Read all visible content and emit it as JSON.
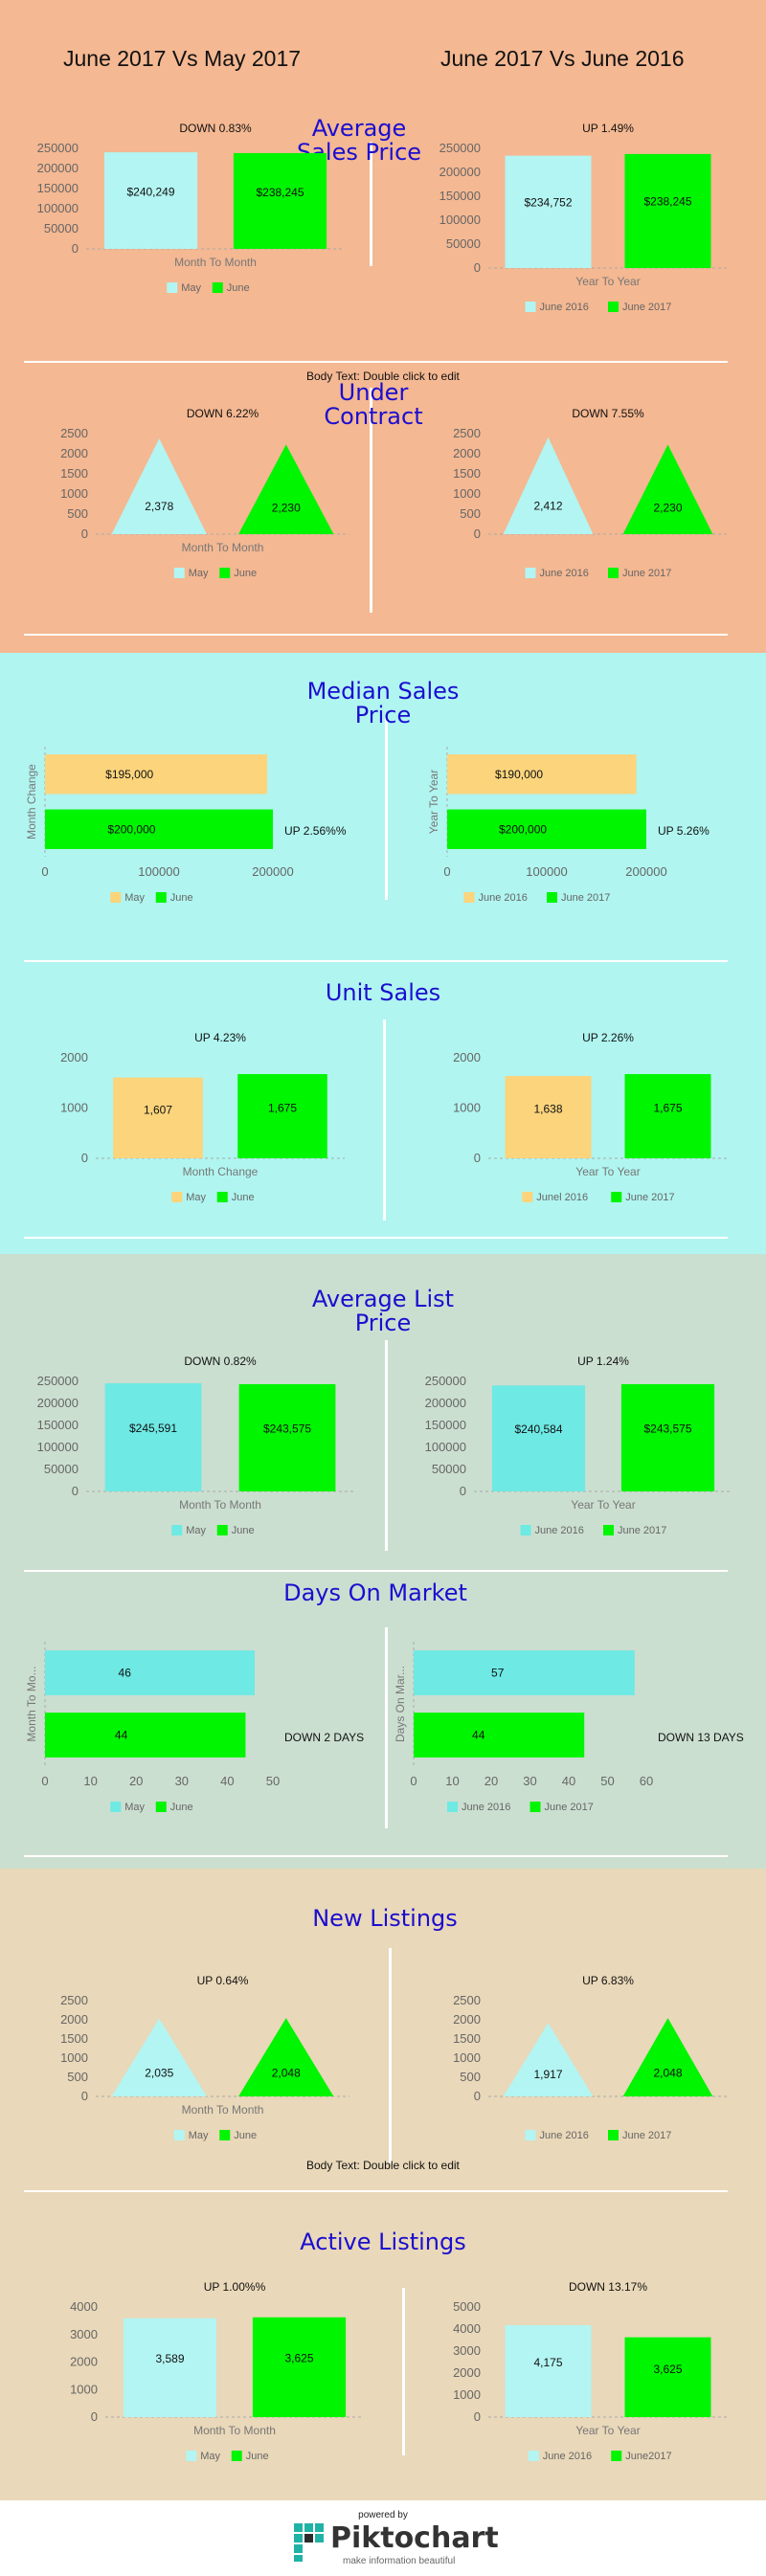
{
  "colors": {
    "peach_bg": "#f4b892",
    "cyan_bg": "#b0f5f0",
    "sage_bg": "#cbdfd0",
    "tan_bg": "#e9d8b9",
    "light_cyan": "#b3f5f2",
    "bright_green": "#00f500",
    "light_orange": "#fbd47c",
    "teal_bar": "#6ee9e4",
    "title_blue": "#1b0ecf"
  },
  "header": {
    "left_title": "June 2017 Vs May 2017",
    "right_title": "June 2017 Vs June 2016"
  },
  "body_text_1": "Body Text: Double click to edit",
  "body_text_2": "Body Text: Double click to edit",
  "sections": {
    "avg_sales_price": {
      "title_line1": "Average",
      "title_line2": "Sales Price"
    },
    "under_contract": {
      "title_line1": "Under",
      "title_line2": "Contract"
    },
    "median_sales_price": {
      "title_line1": "Median Sales",
      "title_line2": "Price"
    },
    "unit_sales": {
      "title_line1": "Unit Sales"
    },
    "avg_list_price": {
      "title_line1": "Average List",
      "title_line2": "Price"
    },
    "days_on_market": {
      "title_line1": "Days On Market"
    },
    "new_listings": {
      "title_line1": "New Listings"
    },
    "active_listings": {
      "title_line1": "Active Listings"
    }
  },
  "footer": {
    "powered_by": "powered by",
    "brand": "Piktochart",
    "tagline": "make information beautiful"
  },
  "chart_data": [
    {
      "id": "asp_m",
      "type": "bar",
      "ylim": [
        0,
        250000
      ],
      "yticks": [
        0,
        50000,
        100000,
        150000,
        200000,
        250000
      ],
      "categories": [
        "May",
        "June"
      ],
      "values": [
        240249,
        238245
      ],
      "value_labels": [
        "$240,249",
        "$238,245"
      ],
      "colors": [
        "#b3f5f2",
        "#00f500"
      ],
      "xlabel": "Month To Month",
      "annotation": "DOWN 0.83%",
      "legend": [
        "May",
        "June"
      ],
      "legend_placement": "bottom"
    },
    {
      "id": "asp_y",
      "type": "bar",
      "ylim": [
        0,
        250000
      ],
      "yticks": [
        0,
        50000,
        100000,
        150000,
        200000,
        250000
      ],
      "categories": [
        "June 2016",
        "June 2017"
      ],
      "values": [
        234752,
        238245
      ],
      "value_labels": [
        "$234,752",
        "$238,245"
      ],
      "colors": [
        "#b3f5f2",
        "#00f500"
      ],
      "xlabel": "Year To Year",
      "annotation": "UP 1.49%",
      "legend": [
        "June 2016",
        "June 2017"
      ],
      "legend_placement": "bottom"
    },
    {
      "id": "uc_m",
      "type": "triangle",
      "ylim": [
        0,
        2500
      ],
      "yticks": [
        0,
        500,
        1000,
        1500,
        2000,
        2500
      ],
      "categories": [
        "May",
        "June"
      ],
      "values": [
        2378,
        2230
      ],
      "value_labels": [
        "2,378",
        "2,230"
      ],
      "colors": [
        "#b3f5f2",
        "#00f500"
      ],
      "xlabel": "Month To Month",
      "annotation": "DOWN 6.22%",
      "legend": [
        "May",
        "June"
      ],
      "legend_placement": "bottom"
    },
    {
      "id": "uc_y",
      "type": "triangle",
      "ylim": [
        0,
        2500
      ],
      "yticks": [
        0,
        500,
        1000,
        1500,
        2000,
        2500
      ],
      "categories": [
        "June 2016",
        "June 2017"
      ],
      "values": [
        2412,
        2230
      ],
      "value_labels": [
        "2,412",
        "2,230"
      ],
      "colors": [
        "#b3f5f2",
        "#00f500"
      ],
      "xlabel": "",
      "annotation": "DOWN 7.55%",
      "legend": [
        "June 2016",
        "June 2017"
      ],
      "legend_placement": "bottom"
    },
    {
      "id": "msp_m",
      "type": "hbar",
      "xlim": [
        0,
        200000
      ],
      "xticks": [
        0,
        100000,
        200000
      ],
      "categories": [
        "May",
        "June"
      ],
      "values": [
        195000,
        200000
      ],
      "value_labels": [
        "$195,000",
        "$200,000"
      ],
      "colors": [
        "#fbd47c",
        "#00f500"
      ],
      "ylabel": "Month Change",
      "annotation": "UP 2.56%%",
      "legend": [
        "May",
        "June"
      ],
      "legend_placement": "bottom"
    },
    {
      "id": "msp_y",
      "type": "hbar",
      "xlim": [
        0,
        200000
      ],
      "xticks": [
        0,
        100000,
        200000
      ],
      "categories": [
        "June 2016",
        "June 2017"
      ],
      "values": [
        190000,
        200000
      ],
      "value_labels": [
        "$190,000",
        "$200,000"
      ],
      "colors": [
        "#fbd47c",
        "#00f500"
      ],
      "ylabel": "Year To Year",
      "annotation": "UP 5.26%",
      "legend": [
        "June 2016",
        "June 2017"
      ],
      "legend_placement": "bottom"
    },
    {
      "id": "us_m",
      "type": "bar",
      "ylim": [
        0,
        2000
      ],
      "yticks": [
        0,
        1000,
        2000
      ],
      "categories": [
        "May",
        "June"
      ],
      "values": [
        1607,
        1675
      ],
      "value_labels": [
        "1,607",
        "1,675"
      ],
      "colors": [
        "#fbd47c",
        "#00f500"
      ],
      "xlabel": "Month Change",
      "annotation": "UP 4.23%",
      "legend": [
        "May",
        "June"
      ],
      "legend_placement": "bottom"
    },
    {
      "id": "us_y",
      "type": "bar",
      "ylim": [
        0,
        2000
      ],
      "yticks": [
        0,
        1000,
        2000
      ],
      "categories": [
        "Junel 2016",
        "June 2017"
      ],
      "values": [
        1638,
        1675
      ],
      "value_labels": [
        "1,638",
        "1,675"
      ],
      "colors": [
        "#fbd47c",
        "#00f500"
      ],
      "xlabel": "Year To Year",
      "annotation": "UP 2.26%",
      "legend": [
        "Junel 2016",
        "June 2017"
      ],
      "legend_placement": "bottom"
    },
    {
      "id": "alp_m",
      "type": "bar",
      "ylim": [
        0,
        250000
      ],
      "yticks": [
        0,
        50000,
        100000,
        150000,
        200000,
        250000
      ],
      "categories": [
        "May",
        "June"
      ],
      "values": [
        245591,
        243575
      ],
      "value_labels": [
        "$245,591",
        "$243,575"
      ],
      "colors": [
        "#6ee9e4",
        "#00f500"
      ],
      "xlabel": "Month To Month",
      "annotation": "DOWN 0.82%",
      "legend": [
        "May",
        "June"
      ],
      "legend_placement": "bottom"
    },
    {
      "id": "alp_y",
      "type": "bar",
      "ylim": [
        0,
        250000
      ],
      "yticks": [
        0,
        50000,
        100000,
        150000,
        200000,
        250000
      ],
      "categories": [
        "June 2016",
        "June 2017"
      ],
      "values": [
        240584,
        243575
      ],
      "value_labels": [
        "$240,584",
        "$243,575"
      ],
      "colors": [
        "#6ee9e4",
        "#00f500"
      ],
      "xlabel": "Year To Year",
      "annotation": "UP 1.24%",
      "legend": [
        "June 2016",
        "June 2017"
      ],
      "legend_placement": "bottom"
    },
    {
      "id": "dom_m",
      "type": "hbar",
      "xlim": [
        0,
        50
      ],
      "xticks": [
        0,
        10,
        20,
        30,
        40,
        50
      ],
      "categories": [
        "May",
        "June"
      ],
      "values": [
        46,
        44
      ],
      "value_labels": [
        "46",
        "44"
      ],
      "colors": [
        "#6ee9e4",
        "#00f500"
      ],
      "ylabel": "Month To Mo...",
      "annotation": "DOWN 2 DAYS",
      "legend": [
        "May",
        "June"
      ],
      "legend_placement": "bottom"
    },
    {
      "id": "dom_y",
      "type": "hbar",
      "xlim": [
        0,
        60
      ],
      "xticks": [
        0,
        10,
        20,
        30,
        40,
        50,
        60
      ],
      "categories": [
        "June 2016",
        "June 2017"
      ],
      "values": [
        57,
        44
      ],
      "value_labels": [
        "57",
        "44"
      ],
      "colors": [
        "#6ee9e4",
        "#00f500"
      ],
      "ylabel": "Days On Mar...",
      "annotation": "DOWN 13 DAYS",
      "legend": [
        "June 2016",
        "June 2017"
      ],
      "legend_placement": "bottom"
    },
    {
      "id": "nl_m",
      "type": "triangle",
      "ylim": [
        0,
        2500
      ],
      "yticks": [
        0,
        500,
        1000,
        1500,
        2000,
        2500
      ],
      "categories": [
        "May",
        "June"
      ],
      "values": [
        2035,
        2048
      ],
      "value_labels": [
        "2,035",
        "2,048"
      ],
      "colors": [
        "#b3f5f2",
        "#00f500"
      ],
      "xlabel": "Month To Month",
      "annotation": "UP 0.64%",
      "legend": [
        "May",
        "June"
      ],
      "legend_placement": "bottom"
    },
    {
      "id": "nl_y",
      "type": "triangle",
      "ylim": [
        0,
        2500
      ],
      "yticks": [
        0,
        500,
        1000,
        1500,
        2000,
        2500
      ],
      "categories": [
        "June 2016",
        "June 2017"
      ],
      "values": [
        1917,
        2048
      ],
      "value_labels": [
        "1,917",
        "2,048"
      ],
      "colors": [
        "#b3f5f2",
        "#00f500"
      ],
      "xlabel": "",
      "annotation": "UP 6.83%",
      "legend": [
        "June 2016",
        "June 2017"
      ],
      "legend_placement": "bottom"
    },
    {
      "id": "al_m",
      "type": "bar",
      "ylim": [
        0,
        4000
      ],
      "yticks": [
        0,
        1000,
        2000,
        3000,
        4000
      ],
      "categories": [
        "May",
        "June"
      ],
      "values": [
        3589,
        3625
      ],
      "value_labels": [
        "3,589",
        "3,625"
      ],
      "colors": [
        "#b3f5f2",
        "#00f500"
      ],
      "xlabel": "Month To Month",
      "annotation": "UP 1.00%%",
      "legend": [
        "May",
        "June"
      ],
      "legend_placement": "bottom"
    },
    {
      "id": "al_y",
      "type": "bar",
      "ylim": [
        0,
        5000
      ],
      "yticks": [
        0,
        1000,
        2000,
        3000,
        4000,
        5000
      ],
      "categories": [
        "June 2016",
        "June2017"
      ],
      "values": [
        4175,
        3625
      ],
      "value_labels": [
        "4,175",
        "3,625"
      ],
      "colors": [
        "#b3f5f2",
        "#00f500"
      ],
      "xlabel": "Year To Year",
      "annotation": "DOWN 13.17%",
      "legend": [
        "June 2016",
        "June2017"
      ],
      "legend_placement": "bottom"
    }
  ]
}
